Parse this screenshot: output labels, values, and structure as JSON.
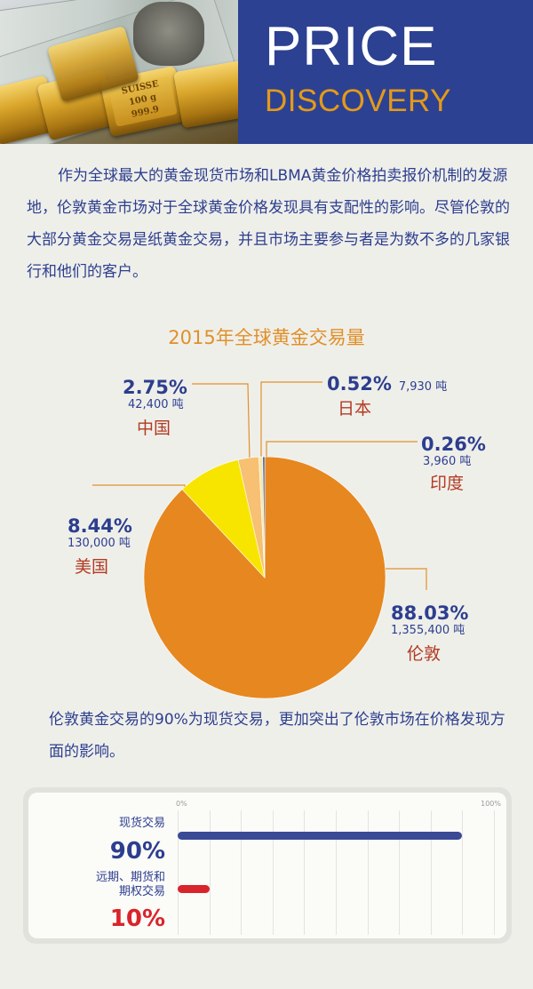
{
  "header": {
    "title_line1": "PRICE",
    "title_line2": "DISCOVERY",
    "bar_stamp": "SUISSE\n100 g\n999.9",
    "colors": {
      "title_bg": "#2c4192",
      "accent": "#e39a1a"
    }
  },
  "intro": "作为全球最大的黄金现货市场和LBMA黄金价格拍卖报价机制的发源地，伦敦黄金市场对于全球黄金价格发现具有支配性的影响。尽管伦敦的大部分黄金交易是纸黄金交易，并且市场主要参与者是为数不多的几家银行和他们的客户。",
  "conclusion": "伦敦黄金交易的90%为现货交易，更加突出了伦敦市场在价格发现方面的影响。",
  "chart_data": [
    {
      "type": "pie",
      "title": "2015年全球黄金交易量",
      "start_angle": "12 o'clock, clockwise",
      "slices": [
        {
          "name": "伦敦",
          "percent": 88.03,
          "percent_label": "88.03%",
          "amount_label": "1,355,400 吨",
          "color": "#e6871f"
        },
        {
          "name": "美国",
          "percent": 8.44,
          "percent_label": "8.44%",
          "amount_label": "130,000 吨",
          "color": "#f7e500"
        },
        {
          "name": "中国",
          "percent": 2.75,
          "percent_label": "2.75%",
          "amount_label": "42,400 吨",
          "color": "#f7c072"
        },
        {
          "name": "日本",
          "percent": 0.52,
          "percent_label": "0.52%",
          "amount_label": "7,930 吨",
          "color": "#f6e9a8"
        },
        {
          "name": "印度",
          "percent": 0.26,
          "percent_label": "0.26%",
          "amount_label": "3,960 吨",
          "color": "#3a57a8"
        }
      ],
      "label_colors": {
        "percent": "#2c3e8f",
        "name": "#b23a22",
        "leader": "#e0902a"
      }
    },
    {
      "type": "bar",
      "orientation": "horizontal",
      "xlim": [
        0,
        100
      ],
      "tick_labels": [
        "0%",
        "100%"
      ],
      "categories": [
        "现货交易",
        "远期、期货和\n期权交易"
      ],
      "values": [
        90,
        10
      ],
      "value_labels": [
        "90%",
        "10%"
      ],
      "colors": [
        "#3a4a95",
        "#d9242b"
      ],
      "grid": true
    }
  ]
}
